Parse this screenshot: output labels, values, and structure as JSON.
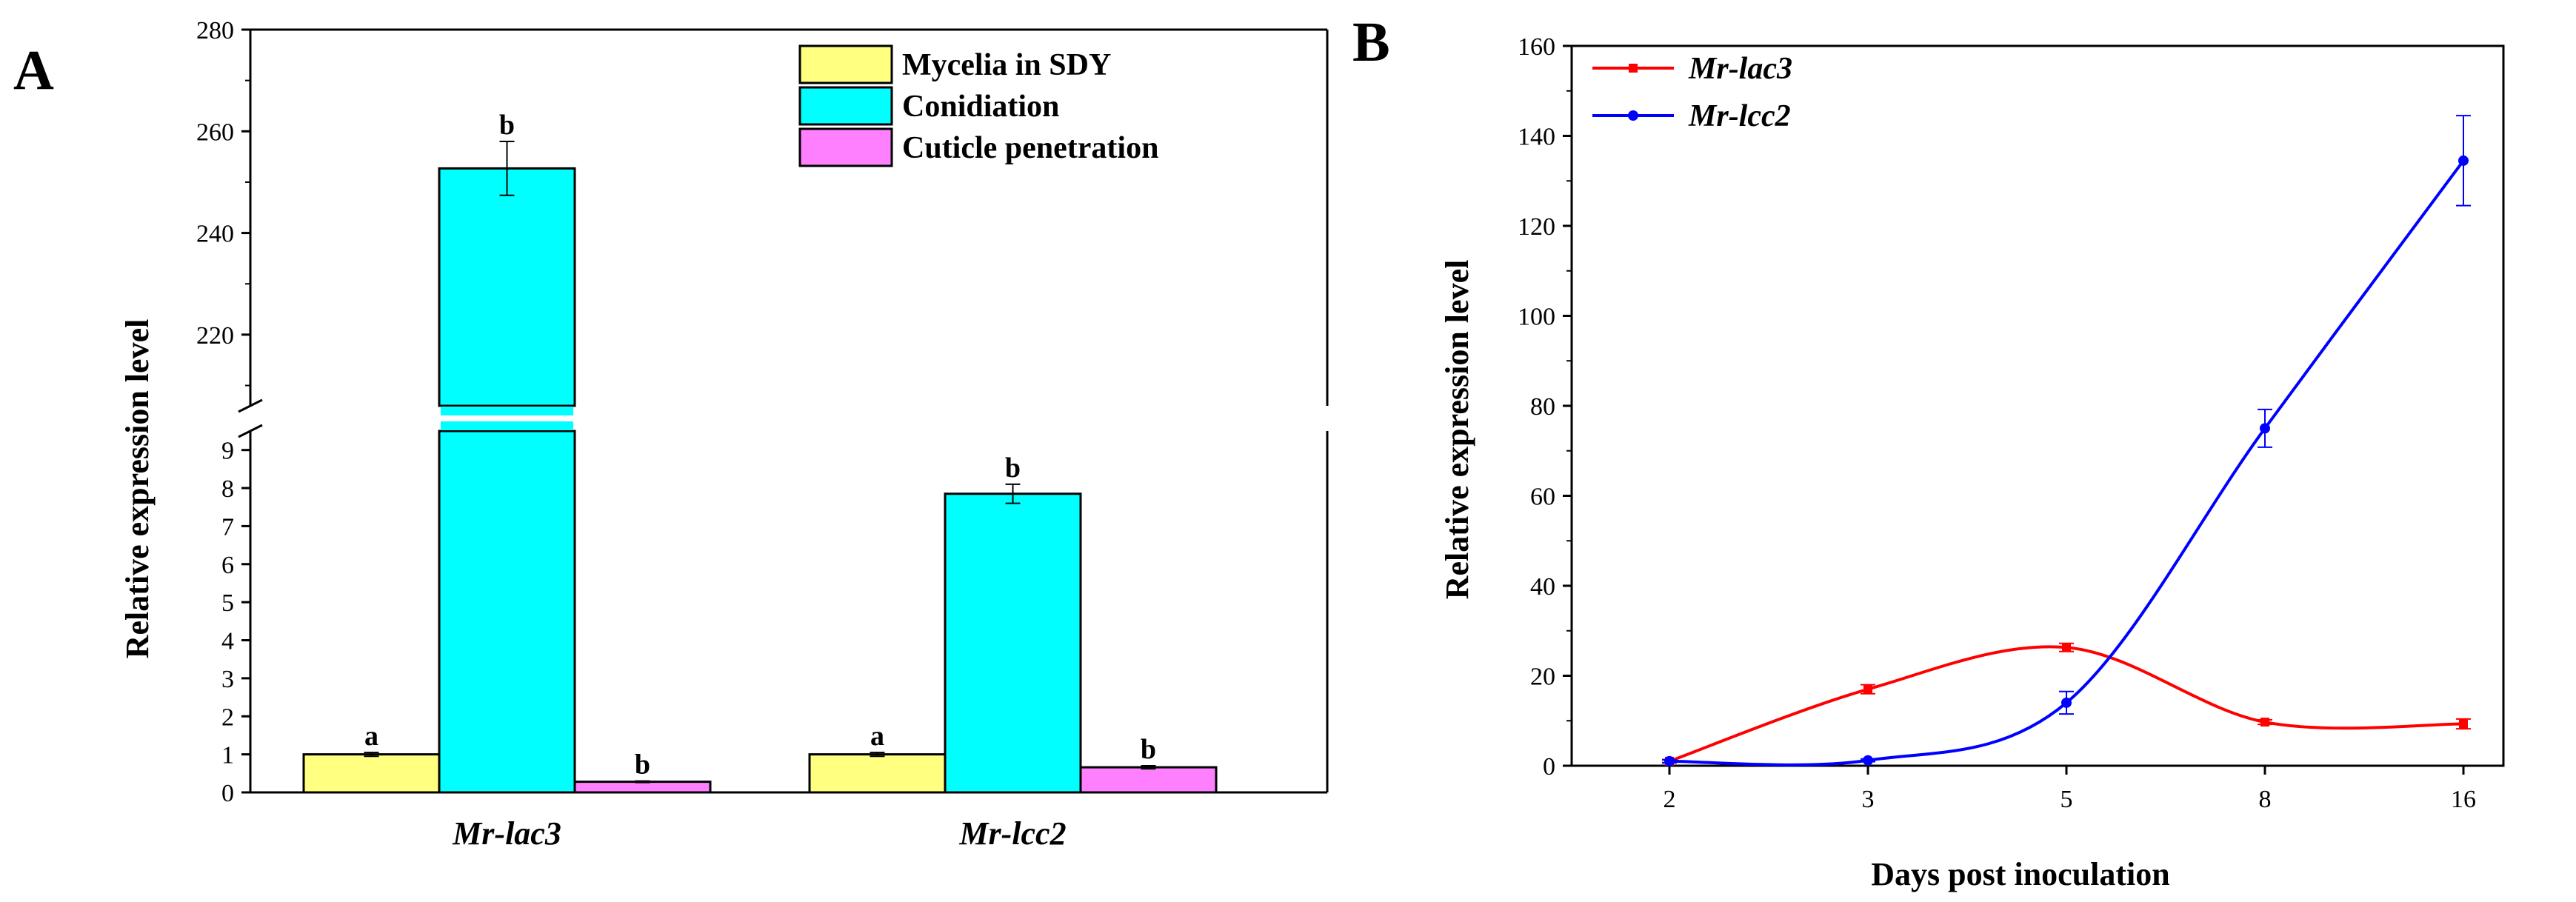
{
  "chart_data": [
    {
      "panel": "A",
      "type": "bar",
      "ylabel": "Relative expression level",
      "xlabel": "",
      "axis_break": {
        "lower_range": [
          0,
          9.5
        ],
        "upper_range": [
          206,
          280
        ]
      },
      "lower_ticks": [
        0,
        1,
        2,
        3,
        4,
        5,
        6,
        7,
        8,
        9
      ],
      "upper_ticks": [
        220,
        240,
        260,
        280
      ],
      "categories": [
        "Mr-lac3",
        "Mr-lcc2"
      ],
      "series": [
        {
          "name": "Mycelia in SDY",
          "color": "#ffff80",
          "values": [
            1.0,
            1.0
          ],
          "errors": [
            0.05,
            0.05
          ],
          "letters": [
            "a",
            "a"
          ]
        },
        {
          "name": "Conidiation",
          "color": "#00ffff",
          "values": [
            252.7,
            7.85
          ],
          "errors": [
            5.3,
            0.25
          ],
          "letters": [
            "b",
            "b"
          ]
        },
        {
          "name": "Cuticle penetration",
          "color": "#ff80ff",
          "values": [
            0.28,
            0.66
          ],
          "errors": [
            0.02,
            0.04
          ],
          "letters": [
            "b",
            "b"
          ]
        }
      ]
    },
    {
      "panel": "B",
      "type": "line",
      "xlabel": "Days post inoculation",
      "ylabel": "Relative expression level",
      "x": [
        "2",
        "3",
        "5",
        "8",
        "16"
      ],
      "ylim": [
        0,
        160
      ],
      "yticks": [
        0,
        20,
        40,
        60,
        80,
        100,
        120,
        140,
        160
      ],
      "series": [
        {
          "name": "Mr-lac3",
          "color": "#ff0000",
          "values": [
            1.0,
            17.0,
            26.3,
            9.7,
            9.3
          ],
          "errors": [
            0.4,
            1.0,
            0.9,
            0.5,
            1.1
          ]
        },
        {
          "name": "Mr-lcc2",
          "color": "#0000ff",
          "values": [
            1.0,
            1.2,
            14.0,
            75.0,
            134.5
          ],
          "errors": [
            0.3,
            0.3,
            2.5,
            4.2,
            10.0
          ]
        }
      ]
    }
  ]
}
